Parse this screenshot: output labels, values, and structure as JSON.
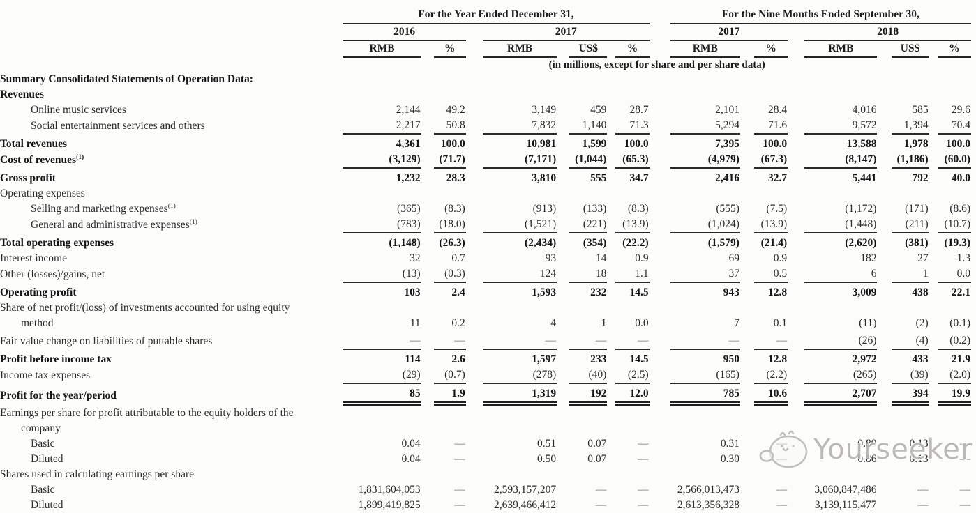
{
  "table": {
    "group_headers": [
      "For the Year Ended December 31,",
      "For the Nine Months Ended September 30,"
    ],
    "year_headers": [
      "2016",
      "2017",
      "2017",
      "2018"
    ],
    "unit_headers": [
      "RMB",
      "%",
      "RMB",
      "US$",
      "%",
      "RMB",
      "%",
      "RMB",
      "US$",
      "%"
    ],
    "units_note": "(in millions, except for share and per share data)",
    "rows": [
      {
        "label": "Summary Consolidated Statements of Operation Data:",
        "bold": true,
        "indent": 0,
        "values": null,
        "rule": "none"
      },
      {
        "label": "Revenues",
        "bold": true,
        "indent": 0,
        "values": null,
        "rule": "none"
      },
      {
        "label": "Online music services",
        "bold": false,
        "indent": 1,
        "values": [
          "2,144",
          "49.2",
          "3,149",
          "459",
          "28.7",
          "2,101",
          "28.4",
          "4,016",
          "585",
          "29.6"
        ],
        "rule": "none"
      },
      {
        "label": "Social entertainment services and others",
        "bold": false,
        "indent": 1,
        "values": [
          "2,217",
          "50.8",
          "7,832",
          "1,140",
          "71.3",
          "5,294",
          "71.6",
          "9,572",
          "1,394",
          "70.4"
        ],
        "rule": "single"
      },
      {
        "label": "Total revenues",
        "bold": true,
        "indent": 0,
        "values": [
          "4,361",
          "100.0",
          "10,981",
          "1,599",
          "100.0",
          "7,395",
          "100.0",
          "13,588",
          "1,978",
          "100.0"
        ],
        "rule": "none",
        "padtop": true
      },
      {
        "label": "Cost of revenues",
        "sup": "(1)",
        "bold": true,
        "indent": 0,
        "values": [
          "(3,129)",
          "(71.7)",
          "(7,171)",
          "(1,044)",
          "(65.3)",
          "(4,979)",
          "(67.3)",
          "(8,147)",
          "(1,186)",
          "(60.0)"
        ],
        "rule": "single"
      },
      {
        "label": "Gross profit",
        "bold": true,
        "indent": 0,
        "values": [
          "1,232",
          "28.3",
          "3,810",
          "555",
          "34.7",
          "2,416",
          "32.7",
          "5,441",
          "792",
          "40.0"
        ],
        "rule": "none",
        "padtop": true
      },
      {
        "label": "Operating expenses",
        "bold": false,
        "indent": 0,
        "values": null,
        "rule": "none"
      },
      {
        "label": "Selling and marketing expenses",
        "sup": "(1)",
        "bold": false,
        "indent": 1,
        "values": [
          "(365)",
          "(8.3)",
          "(913)",
          "(133)",
          "(8.3)",
          "(555)",
          "(7.5)",
          "(1,172)",
          "(171)",
          "(8.6)"
        ],
        "rule": "none"
      },
      {
        "label": "General and administrative expenses",
        "sup": "(1)",
        "bold": false,
        "indent": 1,
        "values": [
          "(783)",
          "(18.0)",
          "(1,521)",
          "(221)",
          "(13.9)",
          "(1,024)",
          "(13.9)",
          "(1,448)",
          "(211)",
          "(10.7)"
        ],
        "rule": "single"
      },
      {
        "label": "Total operating expenses",
        "bold": true,
        "indent": 0,
        "values": [
          "(1,148)",
          "(26.3)",
          "(2,434)",
          "(354)",
          "(22.2)",
          "(1,579)",
          "(21.4)",
          "(2,620)",
          "(381)",
          "(19.3)"
        ],
        "rule": "none",
        "padtop": true
      },
      {
        "label": "Interest income",
        "bold": false,
        "indent": 0,
        "values": [
          "32",
          "0.7",
          "93",
          "14",
          "0.9",
          "69",
          "0.9",
          "182",
          "27",
          "1.3"
        ],
        "rule": "none"
      },
      {
        "label": "Other (losses)/gains, net",
        "bold": false,
        "indent": 0,
        "values": [
          "(13)",
          "(0.3)",
          "124",
          "18",
          "1.1",
          "37",
          "0.5",
          "6",
          "1",
          "0.0"
        ],
        "rule": "single"
      },
      {
        "label": "Operating profit",
        "bold": true,
        "indent": 0,
        "values": [
          "103",
          "2.4",
          "1,593",
          "232",
          "14.5",
          "943",
          "12.8",
          "3,009",
          "438",
          "22.1"
        ],
        "rule": "none",
        "padtop": true
      },
      {
        "label": "Share of net profit/(loss) of investments accounted for using equity",
        "label2": "method",
        "bold": false,
        "indent": 0,
        "values": [
          "11",
          "0.2",
          "4",
          "1",
          "0.0",
          "7",
          "0.1",
          "(11)",
          "(2)",
          "(0.1)"
        ],
        "rule": "none"
      },
      {
        "label": "Fair value change on liabilities of puttable shares",
        "bold": false,
        "indent": 0,
        "values": [
          "—",
          "—",
          "—",
          "—",
          "—",
          "—",
          "—",
          "(26)",
          "(4)",
          "(0.2)"
        ],
        "rule": "single",
        "padtop": true
      },
      {
        "label": "Profit before income tax",
        "bold": true,
        "indent": 0,
        "values": [
          "114",
          "2.6",
          "1,597",
          "233",
          "14.5",
          "950",
          "12.8",
          "2,972",
          "433",
          "21.9"
        ],
        "rule": "none",
        "padtop": true
      },
      {
        "label": "Income tax expenses",
        "bold": false,
        "indent": 0,
        "values": [
          "(29)",
          "(0.7)",
          "(278)",
          "(40)",
          "(2.5)",
          "(165)",
          "(2.2)",
          "(265)",
          "(39)",
          "(2.0)"
        ],
        "rule": "single"
      },
      {
        "label": "Profit for the year/period",
        "bold": true,
        "indent": 0,
        "values": [
          "85",
          "1.9",
          "1,319",
          "192",
          "12.0",
          "785",
          "10.6",
          "2,707",
          "394",
          "19.9"
        ],
        "rule": "double",
        "padtop": true
      },
      {
        "label": "Earnings per share for profit attributable to the equity holders of the",
        "label2": "company",
        "bold": false,
        "indent": 0,
        "values": null,
        "rule": "none",
        "padtop": true
      },
      {
        "label": "Basic",
        "bold": false,
        "indent": 1,
        "values": [
          "0.04",
          "—",
          "0.51",
          "0.07",
          "—",
          "0.31",
          "—",
          "0.89",
          "0.13",
          "—"
        ],
        "rule": "none"
      },
      {
        "label": "Diluted",
        "bold": false,
        "indent": 1,
        "values": [
          "0.04",
          "—",
          "0.50",
          "0.07",
          "—",
          "0.30",
          "—",
          "0.86",
          "0.13",
          "—"
        ],
        "rule": "none"
      },
      {
        "label": "Shares used in calculating earnings per share",
        "bold": false,
        "indent": 0,
        "values": null,
        "rule": "none"
      },
      {
        "label": "Basic",
        "bold": false,
        "indent": 1,
        "values": [
          "1,831,604,053",
          "—",
          "2,593,157,207",
          "—",
          "—",
          "2,566,013,473",
          "—",
          "3,060,847,486",
          "—",
          "—"
        ],
        "rule": "none"
      },
      {
        "label": "Diluted",
        "bold": false,
        "indent": 1,
        "values": [
          "1,899,419,825",
          "—",
          "2,639,466,412",
          "—",
          "—",
          "2,613,356,328",
          "—",
          "3,139,115,477",
          "—",
          "—"
        ],
        "rule": "none"
      }
    ]
  },
  "watermark": {
    "text": "Yourseeker"
  },
  "colors": {
    "text": "#2e2e2e",
    "bold_text": "#161616",
    "rule": "#2a2a2a",
    "watermark": "#b7b5b2",
    "background": "#fcfcfb"
  }
}
